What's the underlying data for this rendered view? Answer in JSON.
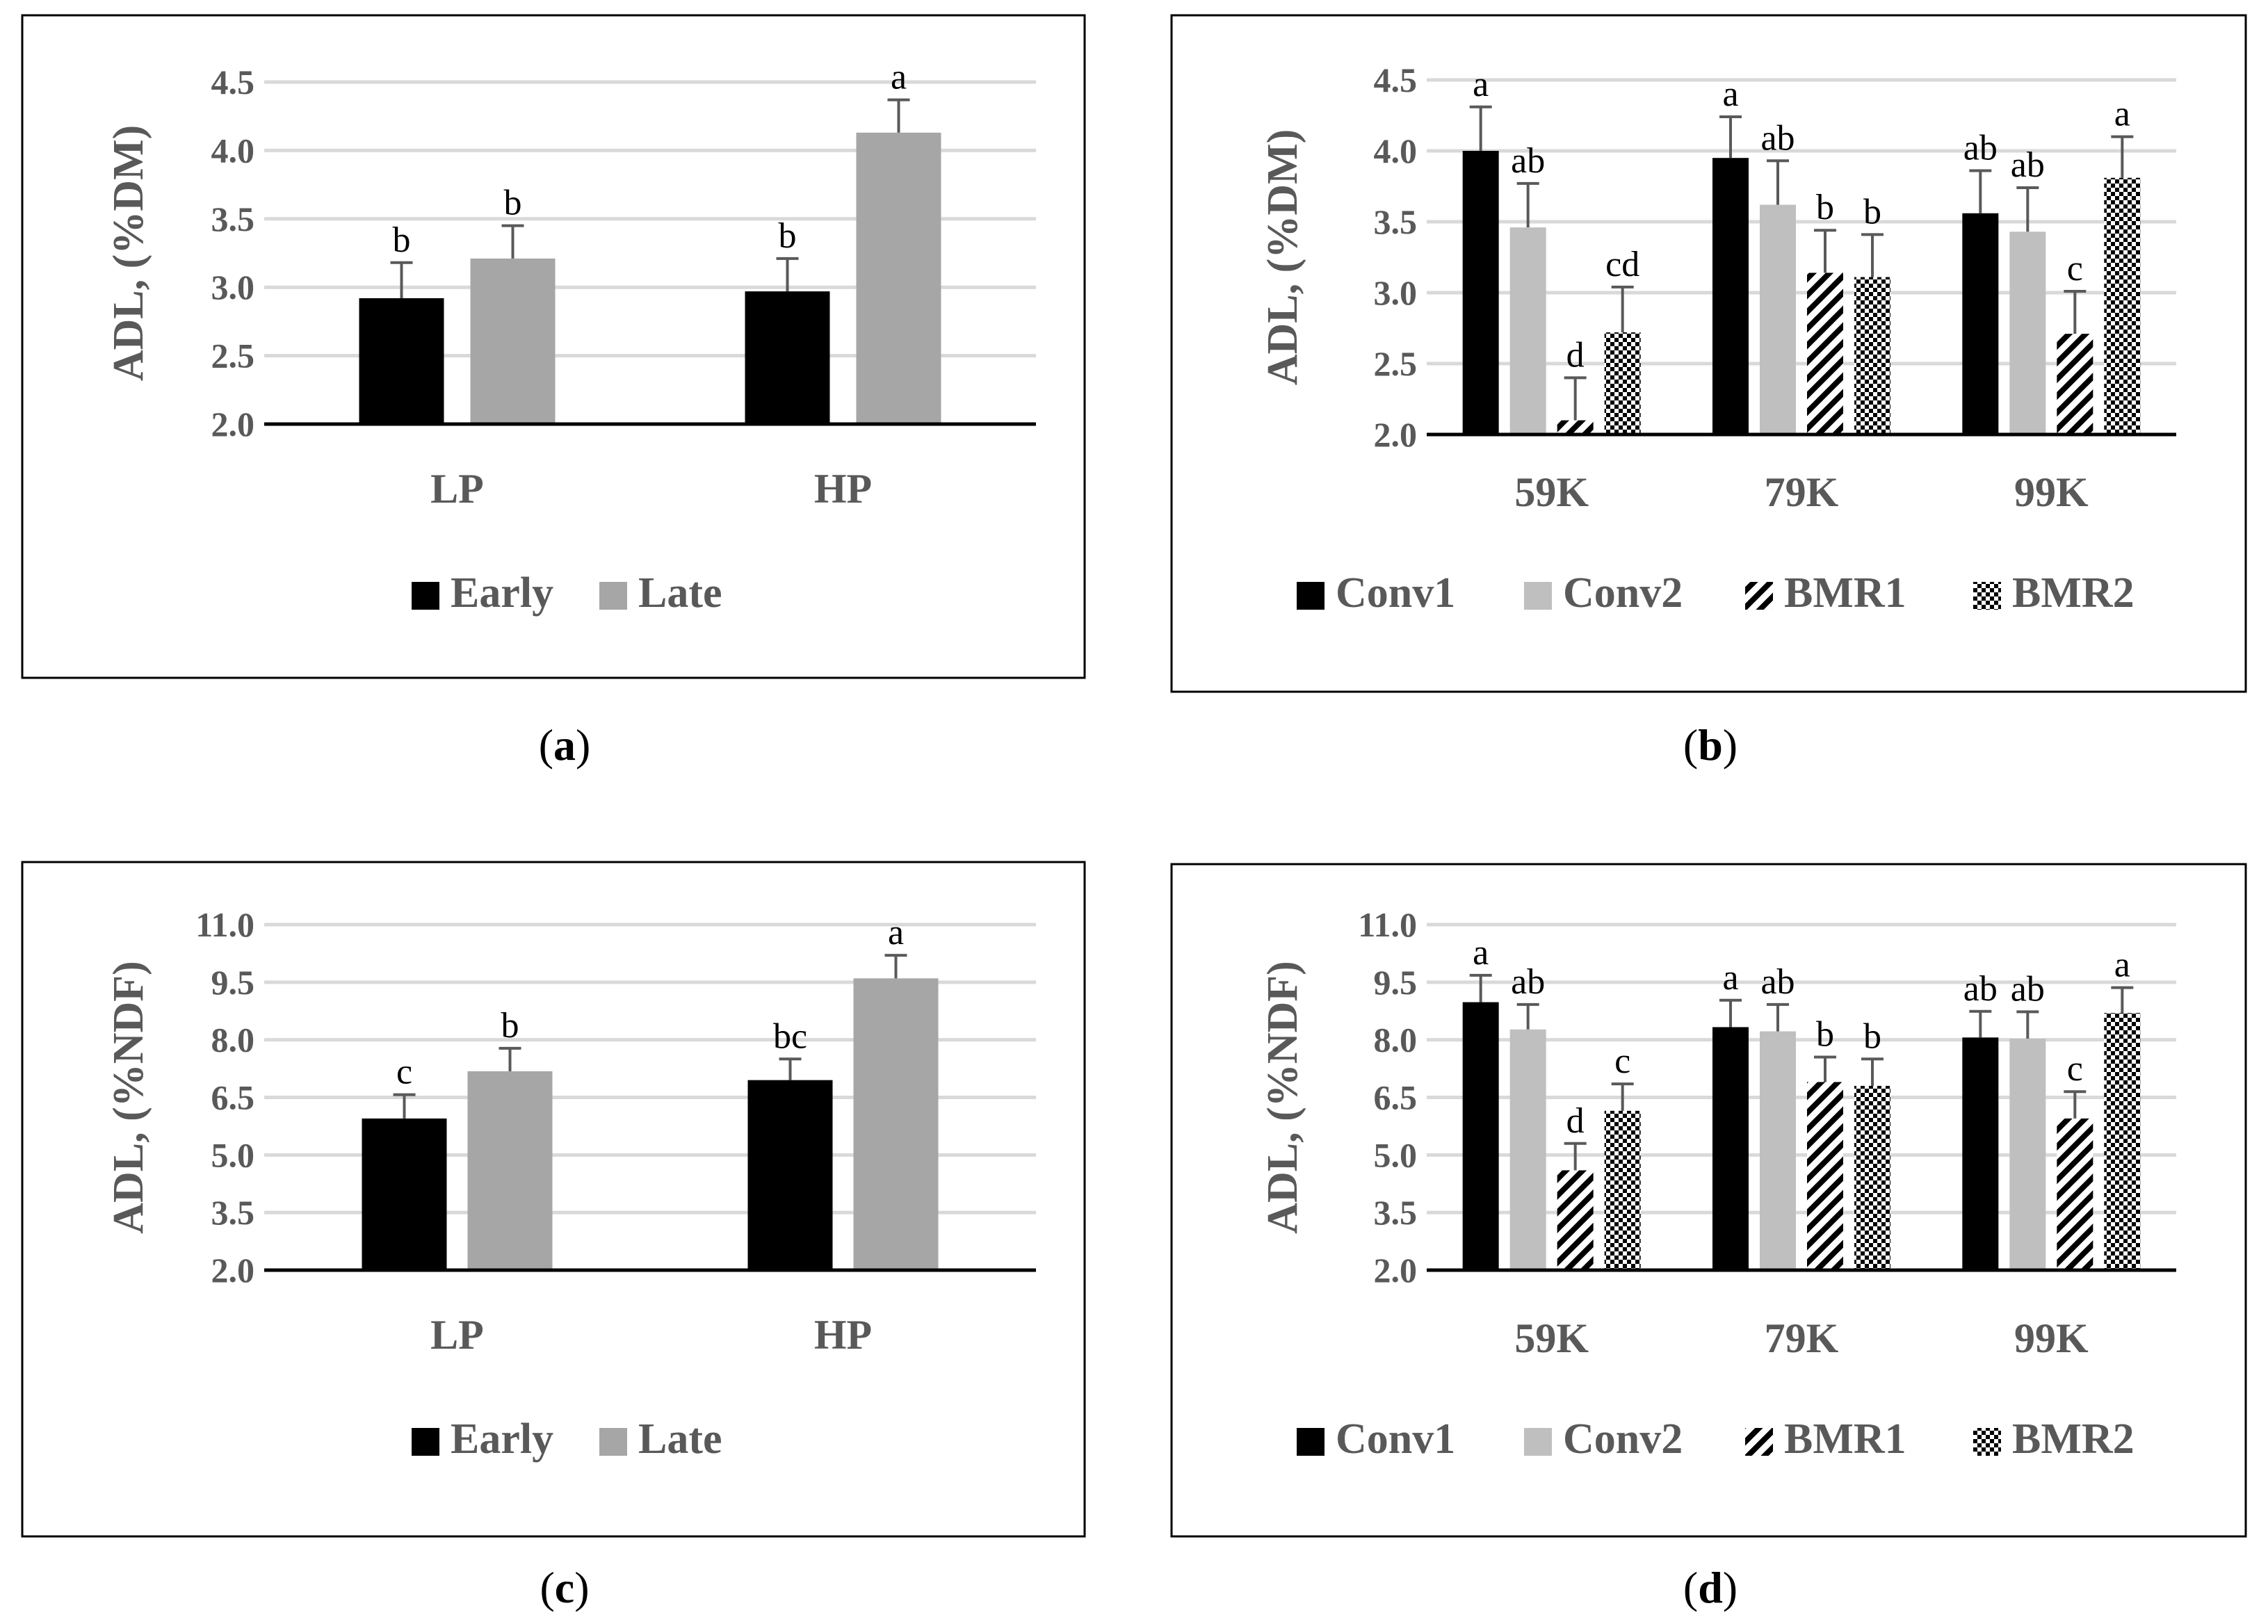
{
  "figure": {
    "panels": [
      {
        "id": "a",
        "caption": "a",
        "chart_data": {
          "type": "bar",
          "ylabel": "ADL, (%DM)",
          "ylim": [
            2.0,
            4.5
          ],
          "yticks": [
            "2.0",
            "2.5",
            "3.0",
            "3.5",
            "4.0",
            "4.5"
          ],
          "categories": [
            "LP",
            "HP"
          ],
          "grid": true,
          "legend_position": "bottom",
          "series": [
            {
              "name": "Early",
              "pattern": "solid",
              "color": "#000000",
              "values": [
                2.92,
                2.97
              ],
              "errors": [
                0.26,
                0.24
              ],
              "letters": [
                "b",
                "b"
              ]
            },
            {
              "name": "Late",
              "pattern": "solid",
              "color": "#a6a6a6",
              "values": [
                3.21,
                4.13
              ],
              "errors": [
                0.24,
                0.24
              ],
              "letters": [
                "b",
                "a"
              ]
            }
          ]
        }
      },
      {
        "id": "b",
        "caption": "b",
        "chart_data": {
          "type": "bar",
          "ylabel": "ADL, (%DM)",
          "ylim": [
            2.0,
            4.5
          ],
          "yticks": [
            "2.0",
            "2.5",
            "3.0",
            "3.5",
            "4.0",
            "4.5"
          ],
          "categories": [
            "59K",
            "79K",
            "99K"
          ],
          "grid": true,
          "legend_position": "bottom",
          "series": [
            {
              "name": "Conv1",
              "pattern": "solid",
              "color": "#000000",
              "values": [
                4.0,
                3.95,
                3.56
              ],
              "errors": [
                0.31,
                0.29,
                0.3
              ],
              "letters": [
                "a",
                "a",
                "ab"
              ]
            },
            {
              "name": "Conv2",
              "pattern": "solid",
              "color": "#bfbfbf",
              "values": [
                3.46,
                3.62,
                3.43
              ],
              "errors": [
                0.31,
                0.31,
                0.31
              ],
              "letters": [
                "ab",
                "ab",
                "ab"
              ]
            },
            {
              "name": "BMR1",
              "pattern": "diagonal",
              "color": "#000000",
              "values": [
                2.1,
                3.14,
                2.71
              ],
              "errors": [
                0.3,
                0.3,
                0.3
              ],
              "letters": [
                "d",
                "b",
                "c"
              ]
            },
            {
              "name": "BMR2",
              "pattern": "checker",
              "color": "#000000",
              "values": [
                2.72,
                3.11,
                3.81
              ],
              "errors": [
                0.32,
                0.3,
                0.29
              ],
              "letters": [
                "cd",
                "b",
                "a"
              ]
            }
          ]
        }
      },
      {
        "id": "c",
        "caption": "c",
        "chart_data": {
          "type": "bar",
          "ylabel": "ADL, (%NDF)",
          "ylim": [
            2.0,
            11.0
          ],
          "yticks": [
            "2.0",
            "3.5",
            "5.0",
            "6.5",
            "8.0",
            "9.5",
            "11.0"
          ],
          "categories": [
            "LP",
            "HP"
          ],
          "grid": true,
          "legend_position": "bottom",
          "series": [
            {
              "name": "Early",
              "pattern": "solid",
              "color": "#000000",
              "values": [
                5.95,
                6.95
              ],
              "errors": [
                0.62,
                0.55
              ],
              "letters": [
                "c",
                "bc"
              ]
            },
            {
              "name": "Late",
              "pattern": "solid",
              "color": "#a6a6a6",
              "values": [
                7.18,
                9.6
              ],
              "errors": [
                0.6,
                0.6
              ],
              "letters": [
                "b",
                "a"
              ]
            }
          ]
        }
      },
      {
        "id": "d",
        "caption": "d",
        "chart_data": {
          "type": "bar",
          "ylabel": "ADL, (%NDF)",
          "ylim": [
            2.0,
            11.0
          ],
          "yticks": [
            "2.0",
            "3.5",
            "5.0",
            "6.5",
            "8.0",
            "9.5",
            "11.0"
          ],
          "categories": [
            "59K",
            "79K",
            "99K"
          ],
          "grid": true,
          "legend_position": "bottom",
          "series": [
            {
              "name": "Conv1",
              "pattern": "solid",
              "color": "#000000",
              "values": [
                8.98,
                8.33,
                8.06
              ],
              "errors": [
                0.7,
                0.7,
                0.68
              ],
              "letters": [
                "a",
                "a",
                "ab"
              ]
            },
            {
              "name": "Conv2",
              "pattern": "solid",
              "color": "#bfbfbf",
              "values": [
                8.27,
                8.22,
                8.03
              ],
              "errors": [
                0.65,
                0.7,
                0.7
              ],
              "letters": [
                "ab",
                "ab",
                "ab"
              ]
            },
            {
              "name": "BMR1",
              "pattern": "diagonal",
              "color": "#000000",
              "values": [
                4.6,
                6.9,
                5.95
              ],
              "errors": [
                0.7,
                0.65,
                0.7
              ],
              "letters": [
                "d",
                "b",
                "c"
              ]
            },
            {
              "name": "BMR2",
              "pattern": "checker",
              "color": "#000000",
              "values": [
                6.15,
                6.8,
                8.7
              ],
              "errors": [
                0.7,
                0.7,
                0.66
              ],
              "letters": [
                "c",
                "b",
                "a"
              ]
            }
          ]
        }
      }
    ]
  }
}
